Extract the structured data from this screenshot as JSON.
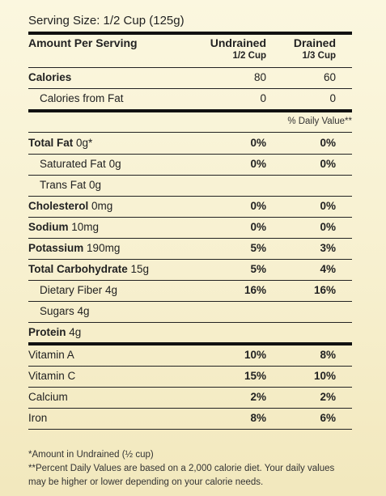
{
  "serving_size": "Serving Size: 1/2 Cup (125g)",
  "header": {
    "amount_label": "Amount Per Serving",
    "col1_title": "Undrained",
    "col1_sub": "1/2 Cup",
    "col2_title": "Drained",
    "col2_sub": "1/3 Cup"
  },
  "calories": [
    {
      "label": "Calories",
      "v1": "80",
      "v2": "60"
    },
    {
      "label": "Calories from Fat",
      "v1": "0",
      "v2": "0"
    }
  ],
  "daily_value_note": "% Daily Value**",
  "nutrients": [
    {
      "name": "Total Fat",
      "amount": "0g*",
      "v1": "0%",
      "v2": "0%"
    },
    {
      "name": "Saturated Fat",
      "amount": "0g",
      "v1": "0%",
      "v2": "0%"
    },
    {
      "name": "Trans Fat",
      "amount": "0g",
      "v1": "",
      "v2": ""
    },
    {
      "name": "Cholesterol",
      "amount": "0mg",
      "v1": "0%",
      "v2": "0%"
    },
    {
      "name": "Sodium",
      "amount": "10mg",
      "v1": "0%",
      "v2": "0%"
    },
    {
      "name": "Potassium",
      "amount": "190mg",
      "v1": "5%",
      "v2": "3%"
    },
    {
      "name": "Total Carbohydrate",
      "amount": "15g",
      "v1": "5%",
      "v2": "4%"
    },
    {
      "name": "Dietary Fiber",
      "amount": "4g",
      "v1": "16%",
      "v2": "16%"
    },
    {
      "name": "Sugars",
      "amount": "4g",
      "v1": "",
      "v2": ""
    },
    {
      "name": "Protein",
      "amount": "4g",
      "v1": "",
      "v2": ""
    }
  ],
  "vitamins": [
    {
      "name": "Vitamin A",
      "v1": "10%",
      "v2": "8%"
    },
    {
      "name": "Vitamin C",
      "v1": "15%",
      "v2": "10%"
    },
    {
      "name": "Calcium",
      "v1": "2%",
      "v2": "2%"
    },
    {
      "name": "Iron",
      "v1": "8%",
      "v2": "6%"
    }
  ],
  "footnotes": {
    "note1": "*Amount in Undrained (½ cup)",
    "note2": "**Percent Daily Values are based on a 2,000 calorie diet. Your daily values may be higher or lower depending on your calorie needs."
  }
}
